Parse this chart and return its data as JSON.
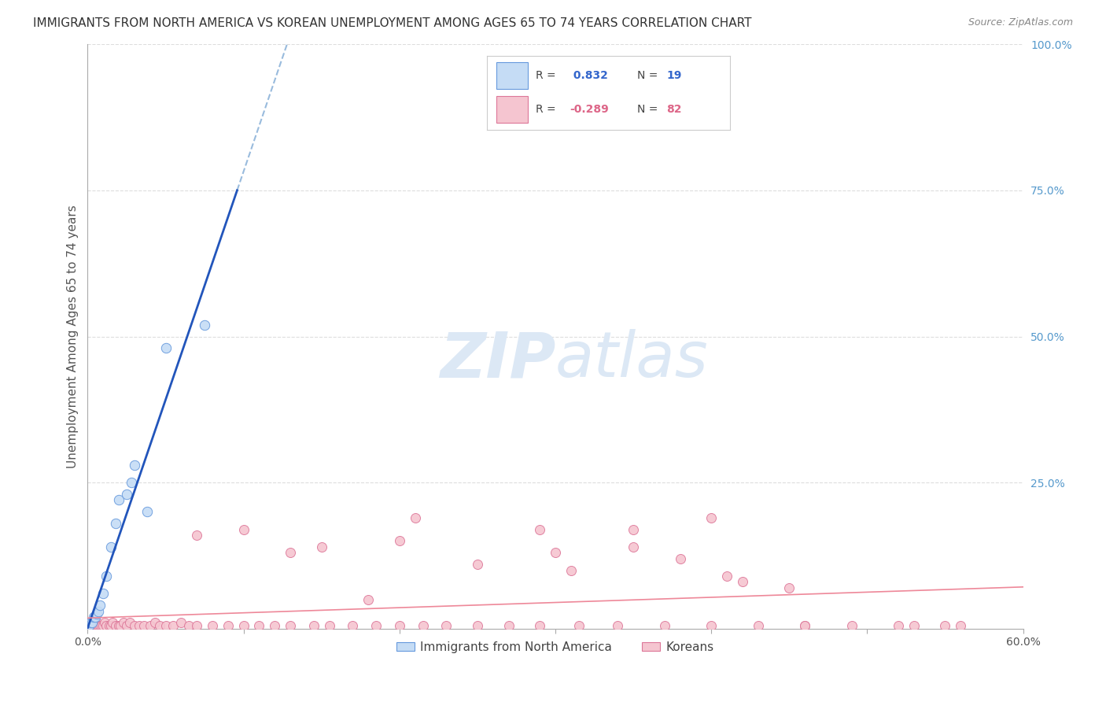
{
  "title": "IMMIGRANTS FROM NORTH AMERICA VS KOREAN UNEMPLOYMENT AMONG AGES 65 TO 74 YEARS CORRELATION CHART",
  "source": "Source: ZipAtlas.com",
  "ylabel": "Unemployment Among Ages 65 to 74 years",
  "xlim": [
    0.0,
    0.6
  ],
  "ylim": [
    0.0,
    1.0
  ],
  "xticks": [
    0.0,
    0.1,
    0.2,
    0.3,
    0.4,
    0.5,
    0.6
  ],
  "xticklabels": [
    "0.0%",
    "",
    "",
    "",
    "",
    "",
    "60.0%"
  ],
  "yticks": [
    0.0,
    0.25,
    0.5,
    0.75,
    1.0
  ],
  "yticklabels": [
    "",
    "25.0%",
    "50.0%",
    "75.0%",
    "100.0%"
  ],
  "blue_R": 0.832,
  "blue_N": 19,
  "pink_R": -0.289,
  "pink_N": 82,
  "legend_label_blue": "Immigrants from North America",
  "legend_label_pink": "Koreans",
  "blue_scatter_x": [
    0.001,
    0.002,
    0.003,
    0.004,
    0.005,
    0.006,
    0.007,
    0.008,
    0.01,
    0.012,
    0.015,
    0.018,
    0.02,
    0.025,
    0.028,
    0.03,
    0.038,
    0.05,
    0.075
  ],
  "blue_scatter_y": [
    0.005,
    0.01,
    0.01,
    0.02,
    0.02,
    0.025,
    0.03,
    0.04,
    0.06,
    0.09,
    0.14,
    0.18,
    0.22,
    0.23,
    0.25,
    0.28,
    0.2,
    0.48,
    0.52
  ],
  "pink_scatter_x": [
    0.001,
    0.002,
    0.002,
    0.003,
    0.003,
    0.004,
    0.005,
    0.005,
    0.006,
    0.006,
    0.007,
    0.008,
    0.009,
    0.01,
    0.011,
    0.012,
    0.014,
    0.015,
    0.016,
    0.018,
    0.02,
    0.021,
    0.023,
    0.025,
    0.027,
    0.03,
    0.033,
    0.036,
    0.04,
    0.043,
    0.046,
    0.05,
    0.055,
    0.06,
    0.065,
    0.07,
    0.08,
    0.09,
    0.1,
    0.11,
    0.12,
    0.13,
    0.145,
    0.155,
    0.17,
    0.185,
    0.2,
    0.215,
    0.23,
    0.25,
    0.27,
    0.29,
    0.315,
    0.34,
    0.37,
    0.4,
    0.43,
    0.46,
    0.49,
    0.52,
    0.55,
    0.1,
    0.15,
    0.2,
    0.25,
    0.3,
    0.35,
    0.4,
    0.18,
    0.31,
    0.45,
    0.53,
    0.56,
    0.38,
    0.42,
    0.46,
    0.07,
    0.13,
    0.21,
    0.29,
    0.35,
    0.41
  ],
  "pink_scatter_y": [
    0.005,
    0.005,
    0.01,
    0.005,
    0.01,
    0.005,
    0.005,
    0.01,
    0.005,
    0.01,
    0.005,
    0.005,
    0.005,
    0.005,
    0.01,
    0.005,
    0.005,
    0.005,
    0.01,
    0.005,
    0.005,
    0.005,
    0.01,
    0.005,
    0.01,
    0.005,
    0.005,
    0.005,
    0.005,
    0.01,
    0.005,
    0.005,
    0.005,
    0.01,
    0.005,
    0.005,
    0.005,
    0.005,
    0.005,
    0.005,
    0.005,
    0.005,
    0.005,
    0.005,
    0.005,
    0.005,
    0.005,
    0.005,
    0.005,
    0.005,
    0.005,
    0.005,
    0.005,
    0.005,
    0.005,
    0.005,
    0.005,
    0.005,
    0.005,
    0.005,
    0.005,
    0.17,
    0.14,
    0.15,
    0.11,
    0.13,
    0.17,
    0.19,
    0.05,
    0.1,
    0.07,
    0.005,
    0.005,
    0.12,
    0.08,
    0.005,
    0.16,
    0.13,
    0.19,
    0.17,
    0.14,
    0.09
  ],
  "blue_color": "#c5dcf5",
  "blue_edge_color": "#6699dd",
  "pink_color": "#f5c5d0",
  "pink_edge_color": "#dd7799",
  "blue_trend_color": "#2255bb",
  "pink_trend_color": "#ee8899",
  "dashed_trend_color": "#99bbdd",
  "watermark_zip": "ZIP",
  "watermark_atlas": "atlas",
  "watermark_color": "#dce8f5",
  "background_color": "#ffffff",
  "grid_color": "#dddddd",
  "title_color": "#333333",
  "source_color": "#888888",
  "ylabel_color": "#555555",
  "tick_color": "#555555",
  "ytick_color": "#5599cc"
}
